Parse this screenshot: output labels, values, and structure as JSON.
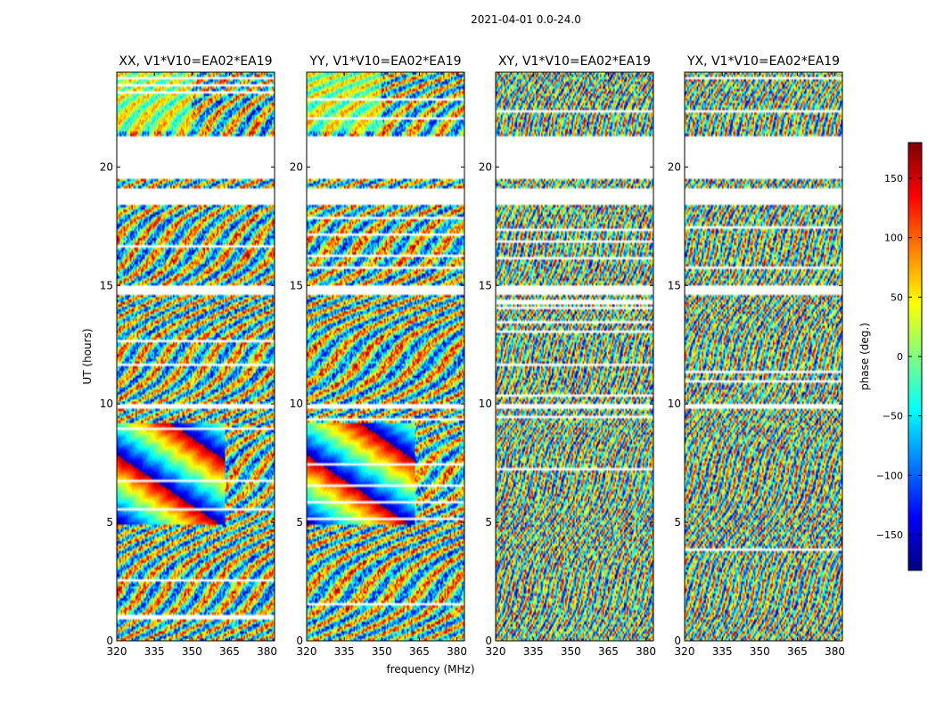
{
  "figure": {
    "suptitle": "2021-04-01 0.0-24.0",
    "xlabel": "frequency (MHz)",
    "ylabel": "UT (hours)"
  },
  "colorbar": {
    "label": "phase (deg.)",
    "range": [
      -180,
      180
    ],
    "ticks": [
      150,
      100,
      50,
      0,
      -50,
      -100,
      -150
    ],
    "tick_labels": [
      "150",
      "100",
      "50",
      "0",
      "−50",
      "−100",
      "−150"
    ],
    "colormap": "jet",
    "stops": [
      "#00007f",
      "#0000ff",
      "#007fff",
      "#00ffff",
      "#7fff7f",
      "#ffff00",
      "#ff7f00",
      "#ff0000",
      "#7f0000"
    ]
  },
  "chart_data": [
    {
      "type": "heatmap",
      "title": "XX, V1*V10=EA02*EA19",
      "x_ticks": [
        "320",
        "335",
        "350",
        "365",
        "380"
      ],
      "x_tick_values": [
        320,
        335,
        350,
        365,
        380
      ],
      "xlim": [
        320,
        383
      ],
      "y_ticks": [
        "0",
        "5",
        "10",
        "15",
        "20"
      ],
      "y_tick_values": [
        0,
        5,
        10,
        15,
        20
      ],
      "ylim": [
        0,
        24
      ],
      "value": "phase (deg.)",
      "fringe_frequency": 0.12,
      "coherent_region_alpha": 0.9
    },
    {
      "type": "heatmap",
      "title": "YY, V1*V10=EA02*EA19",
      "x_ticks": [
        "320",
        "335",
        "350",
        "365",
        "380"
      ],
      "x_tick_values": [
        320,
        335,
        350,
        365,
        380
      ],
      "xlim": [
        320,
        383
      ],
      "y_ticks": [
        "0",
        "5",
        "10",
        "15",
        "20"
      ],
      "y_tick_values": [
        0,
        5,
        10,
        15,
        20
      ],
      "ylim": [
        0,
        24
      ],
      "value": "phase (deg.)",
      "fringe_frequency": 0.1,
      "coherent_region_alpha": 0.9
    },
    {
      "type": "heatmap",
      "title": "XY, V1*V10=EA02*EA19",
      "x_ticks": [
        "320",
        "335",
        "350",
        "365",
        "380"
      ],
      "x_tick_values": [
        320,
        335,
        350,
        365,
        380
      ],
      "xlim": [
        320,
        383
      ],
      "y_ticks": [
        "0",
        "5",
        "10",
        "15",
        "20"
      ],
      "y_tick_values": [
        0,
        5,
        10,
        15,
        20
      ],
      "ylim": [
        0,
        24
      ],
      "value": "phase (deg.)",
      "fringe_frequency": 0.35,
      "coherent_region_alpha": 0.0
    },
    {
      "type": "heatmap",
      "title": "YX, V1*V10=EA02*EA19",
      "x_ticks": [
        "320",
        "335",
        "350",
        "365",
        "380"
      ],
      "x_tick_values": [
        320,
        335,
        350,
        365,
        380
      ],
      "xlim": [
        320,
        383
      ],
      "y_ticks": [
        "0",
        "5",
        "10",
        "15",
        "20"
      ],
      "y_tick_values": [
        0,
        5,
        10,
        15,
        20
      ],
      "ylim": [
        0,
        24
      ],
      "value": "phase (deg.)",
      "fringe_frequency": 0.33,
      "coherent_region_alpha": 0.0
    }
  ],
  "data_gaps_ut_hours": [
    [
      19.5,
      21.3
    ],
    [
      18.4,
      19.1
    ],
    [
      14.6,
      15.0
    ],
    [
      9.8,
      9.95
    ]
  ]
}
